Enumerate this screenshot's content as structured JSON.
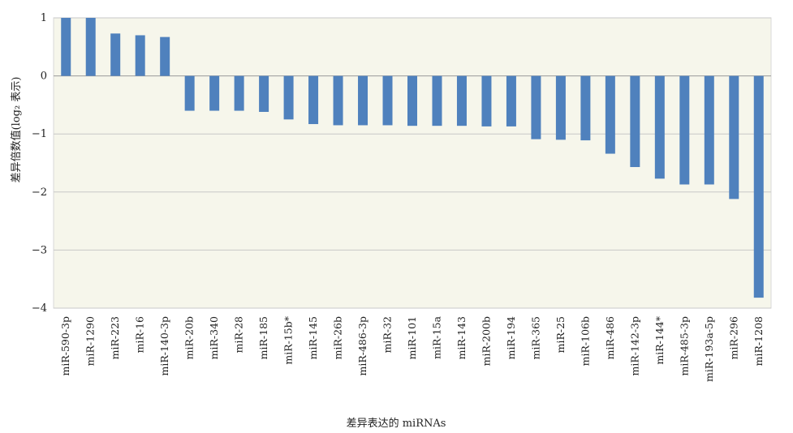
{
  "chart_data": {
    "type": "bar",
    "title": "",
    "xlabel": "差异表达的 miRNAs",
    "ylabel": "差异倍数值(log₂ 表示)",
    "ylim": [
      -4,
      1
    ],
    "yticks": [
      "1",
      "0",
      "−1",
      "−2",
      "−3",
      "−4"
    ],
    "grid": true,
    "bar_color": "#4f81bd",
    "plot_bg": "#f6f6eb",
    "categories": [
      "miR-590-3p",
      "miR-1290",
      "miR-223",
      "miR-16",
      "miR-140-3p",
      "miR-20b",
      "miR-340",
      "miR-28",
      "miR-185",
      "miR-15b*",
      "miR-145",
      "miR-26b",
      "miR-486-3p",
      "miR-32",
      "miR-101",
      "miR-15a",
      "miR-143",
      "miR-200b",
      "miR-194",
      "miR-365",
      "miR-25",
      "miR-106b",
      "miR-486",
      "miR-142-3p",
      "miR-144*",
      "miR-485-3p",
      "miR-193a-5p",
      "miR-296",
      "miR-1208"
    ],
    "values": [
      1.0,
      1.0,
      0.73,
      0.7,
      0.67,
      -0.6,
      -0.6,
      -0.6,
      -0.62,
      -0.75,
      -0.83,
      -0.85,
      -0.85,
      -0.85,
      -0.86,
      -0.86,
      -0.86,
      -0.87,
      -0.87,
      -1.09,
      -1.1,
      -1.11,
      -1.34,
      -1.57,
      -1.77,
      -1.87,
      -1.87,
      -2.12,
      -3.82
    ]
  }
}
